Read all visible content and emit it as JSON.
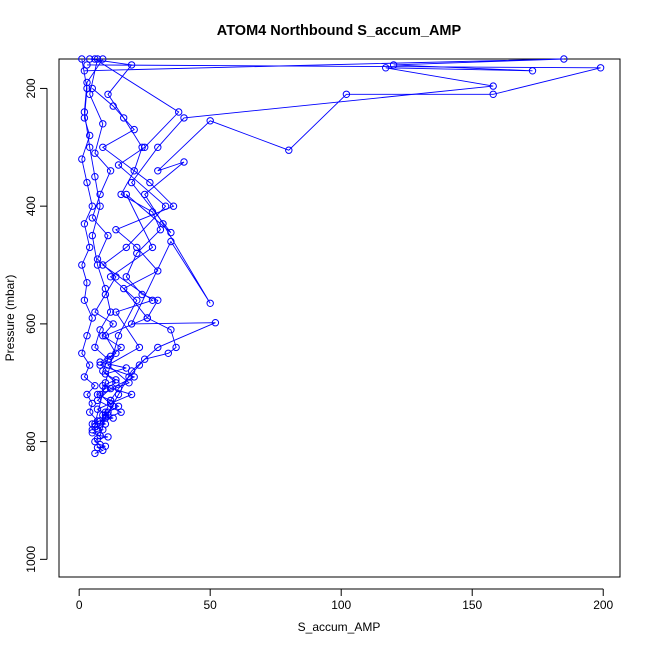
{
  "chart_data": {
    "type": "line",
    "title": "ATOM4 Northbound S_accum_AMP",
    "xlabel": "S_accum_AMP",
    "ylabel": "Pressure (mbar)",
    "xlim": [
      -7.7,
      206.4
    ],
    "ylim": [
      1030,
      150
    ],
    "y_reversed": true,
    "x_ticks": [
      0,
      50,
      100,
      150,
      200
    ],
    "y_ticks": [
      200,
      400,
      600,
      800,
      1000
    ],
    "grid": false,
    "legend": "none",
    "color": "#0000ff",
    "markers": "open-circle",
    "series": [
      {
        "x": [
          9,
          3,
          2,
          4,
          6,
          8,
          5,
          7,
          10,
          12,
          8,
          6,
          11,
          9,
          14,
          10,
          7,
          12,
          15,
          11,
          9,
          13,
          8,
          10,
          6,
          9,
          5,
          8,
          11,
          7,
          6,
          8,
          10,
          7,
          9,
          6
        ],
        "y": [
          150,
          190,
          240,
          300,
          350,
          400,
          450,
          500,
          540,
          580,
          610,
          640,
          660,
          680,
          700,
          710,
          720,
          730,
          740,
          750,
          755,
          760,
          765,
          770,
          775,
          780,
          785,
          790,
          792,
          795,
          800,
          805,
          808,
          810,
          815,
          820
        ]
      },
      {
        "x": [
          4,
          20,
          11,
          17,
          24,
          21,
          16,
          28,
          31,
          22,
          18,
          24,
          30,
          26,
          35,
          37,
          34,
          25,
          23,
          19,
          15,
          12,
          10,
          8,
          7
        ],
        "y": [
          150,
          160,
          210,
          250,
          300,
          340,
          380,
          410,
          440,
          480,
          520,
          550,
          560,
          590,
          610,
          640,
          650,
          660,
          670,
          690,
          710,
          730,
          750,
          770,
          780
        ]
      },
      {
        "x": [
          3,
          199,
          158,
          102,
          80,
          50,
          30,
          40,
          25,
          32,
          50,
          35,
          20,
          52,
          30,
          20,
          15,
          10,
          8
        ],
        "y": [
          160,
          165,
          210,
          210,
          305,
          255,
          340,
          325,
          380,
          430,
          565,
          460,
          600,
          598,
          640,
          680,
          720,
          760,
          790
        ]
      },
      {
        "x": [
          2,
          185,
          120,
          173,
          117,
          158,
          40,
          30,
          20,
          35,
          18,
          28,
          12,
          22,
          15,
          10,
          6
        ],
        "y": [
          170,
          150,
          160,
          170,
          165,
          196,
          250,
          300,
          360,
          445,
          380,
          470,
          520,
          560,
          620,
          700,
          770
        ]
      },
      {
        "x": [
          5,
          13,
          21,
          9,
          27,
          36,
          14,
          22,
          30,
          17,
          26,
          10,
          14,
          8,
          21,
          12,
          7,
          16,
          5
        ],
        "y": [
          200,
          230,
          270,
          300,
          360,
          400,
          440,
          470,
          510,
          540,
          590,
          620,
          650,
          670,
          690,
          710,
          730,
          750,
          770
        ]
      },
      {
        "x": [
          1,
          3,
          2,
          4,
          1,
          3,
          5,
          2,
          4,
          1,
          3,
          2,
          5,
          3,
          1,
          4,
          2,
          6,
          3,
          5,
          4,
          7,
          5
        ],
        "y": [
          150,
          200,
          250,
          280,
          320,
          360,
          400,
          430,
          470,
          500,
          530,
          560,
          590,
          620,
          650,
          670,
          690,
          705,
          720,
          735,
          750,
          765,
          780
        ]
      },
      {
        "x": [
          7,
          4,
          9,
          6,
          12,
          8,
          5,
          11,
          7,
          14,
          10,
          6,
          13,
          9,
          16,
          12,
          8,
          18,
          10,
          14,
          9,
          20,
          12,
          7,
          11,
          8
        ],
        "y": [
          150,
          210,
          260,
          310,
          340,
          380,
          420,
          450,
          490,
          520,
          550,
          580,
          600,
          620,
          640,
          655,
          665,
          675,
          685,
          695,
          705,
          720,
          735,
          745,
          755,
          765
        ]
      },
      {
        "x": [
          6,
          38,
          25,
          15,
          33,
          18,
          9,
          28,
          14,
          23,
          11,
          19,
          8,
          13,
          10
        ],
        "y": [
          150,
          240,
          300,
          330,
          400,
          470,
          500,
          560,
          580,
          640,
          670,
          700,
          720,
          740,
          755
        ]
      }
    ]
  }
}
